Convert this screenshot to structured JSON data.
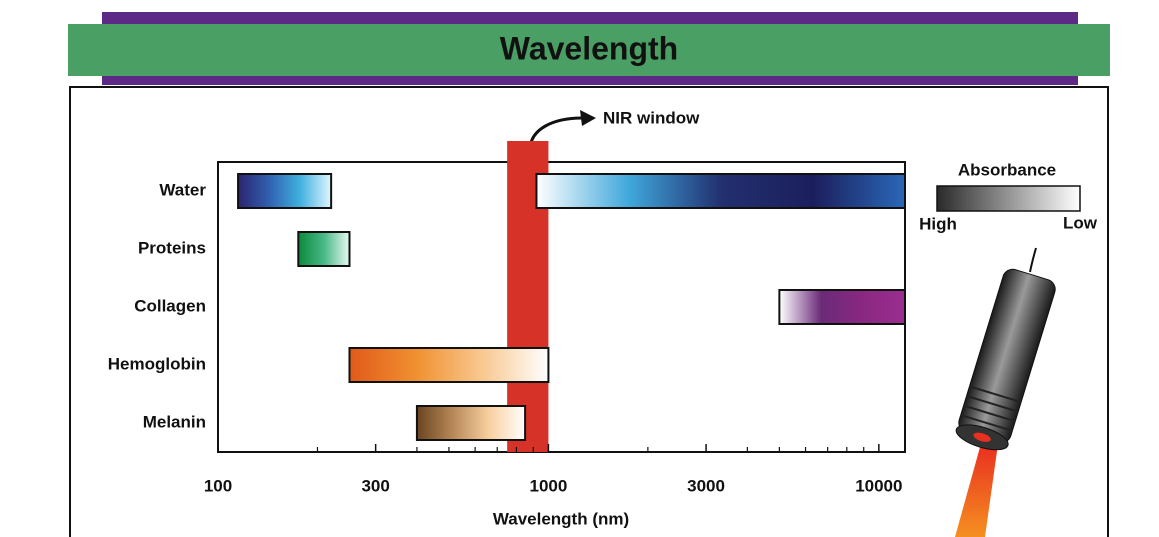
{
  "chart_data": {
    "type": "range",
    "title": "Wavelength",
    "x_label": "Wavelength (nm)",
    "x_log": true,
    "xlim": [
      100,
      12000
    ],
    "xticks": [
      100,
      300,
      1000,
      3000,
      10000
    ],
    "xminorticks": [
      200,
      400,
      500,
      600,
      700,
      800,
      900,
      2000,
      4000,
      5000,
      6000,
      7000,
      8000,
      9000
    ],
    "highlight": {
      "label": "NIR window",
      "range": [
        750,
        1000
      ],
      "color": "#d63228"
    },
    "legend": {
      "title": "Absorbance",
      "high": "High",
      "low": "Low",
      "colors": [
        "#2a2a2a",
        "#ffffff"
      ]
    },
    "series": [
      {
        "name": "Water",
        "ranges": [
          {
            "values": [
              115,
              220
            ],
            "colors": [
              "#2b2470",
              "#3060b0",
              "#40b0e0",
              "#e0f6ff"
            ]
          },
          {
            "values": [
              920,
              12000
            ],
            "colors": [
              "#ffffff",
              "#40a8dc",
              "#223070",
              "#1c1e5c",
              "#2a68b8"
            ]
          }
        ]
      },
      {
        "name": "Proteins",
        "ranges": [
          {
            "values": [
              175,
              250
            ],
            "colors": [
              "#0a8a3a",
              "#48b888",
              "#e8f8f0"
            ]
          }
        ]
      },
      {
        "name": "Collagen",
        "ranges": [
          {
            "values": [
              5000,
              12000
            ],
            "colors": [
              "#ffffff",
              "#6a2a78",
              "#8a2880",
              "#9a2e90"
            ]
          }
        ]
      },
      {
        "name": "Hemoglobin",
        "ranges": [
          {
            "values": [
              250,
              1000
            ],
            "colors": [
              "#e05a1a",
              "#f09030",
              "#f8c890",
              "#ffffff"
            ]
          }
        ]
      },
      {
        "name": "Melanin",
        "ranges": [
          {
            "values": [
              400,
              850
            ],
            "colors": [
              "#6a4420",
              "#b88858",
              "#f8d0a0",
              "#ffffff"
            ]
          }
        ]
      }
    ]
  }
}
